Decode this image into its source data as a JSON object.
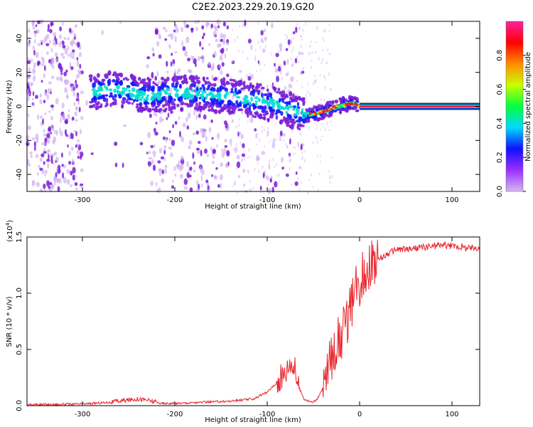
{
  "chart_data": [
    {
      "type": "heatmap",
      "title": "C2E2.2023.229.20.19.G20",
      "xlabel": "Height of straight line (km)",
      "ylabel": "Frequency (Hz)",
      "xlim": [
        -360,
        130
      ],
      "ylim": [
        -50,
        50
      ],
      "x_ticks": [
        -300,
        -200,
        -100,
        0,
        100
      ],
      "y_ticks": [
        -40,
        -20,
        0,
        20,
        40
      ],
      "colorbar": {
        "label": "Normalized spectral amplitude",
        "range": [
          0.0,
          1.0
        ],
        "ticks": [
          "0.0",
          "0.2",
          "0.4",
          "0.6",
          "0.8"
        ],
        "colormap": [
          "#d4b7ef",
          "#9b30ff",
          "#1010ff",
          "#00d8ff",
          "#00ff40",
          "#c8ff00",
          "#ff8c00",
          "#ff0000",
          "#ff20a0"
        ]
      },
      "ridge": {
        "x": [
          -290,
          -270,
          -250,
          -235,
          -220,
          -200,
          -180,
          -160,
          -140,
          -120,
          -100,
          -85,
          -70,
          -55,
          -45,
          -35,
          -25,
          -15,
          -5,
          0,
          130
        ],
        "y": [
          8,
          10,
          9,
          6,
          7,
          8,
          8,
          7,
          6,
          4,
          2,
          0,
          -3,
          -5,
          -4,
          -2,
          0,
          1,
          2,
          0,
          0
        ]
      }
    },
    {
      "type": "line",
      "xlabel": "Height of straight line (km)",
      "ylabel": "SNR (10 * v/v)",
      "multiplier_label": "(x10",
      "multiplier_exp": "4",
      "multiplier_close": ")",
      "xlim": [
        -360,
        130
      ],
      "ylim": [
        0,
        1.5
      ],
      "x_ticks": [
        -300,
        -200,
        -100,
        0,
        100
      ],
      "y_ticks": [
        "0.0",
        "0.5",
        "1.0",
        "1.5"
      ],
      "series": [
        {
          "name": "SNR",
          "color": "#e8232a",
          "x": [
            -360,
            -330,
            -300,
            -270,
            -250,
            -240,
            -230,
            -215,
            -200,
            -170,
            -140,
            -115,
            -100,
            -90,
            -80,
            -75,
            -70,
            -65,
            -60,
            -55,
            -50,
            -45,
            -40,
            -35,
            -30,
            -25,
            -20,
            -15,
            -10,
            -5,
            0,
            5,
            10,
            15,
            20,
            25,
            30,
            35,
            40,
            50,
            60,
            70,
            80,
            90,
            100,
            110,
            120,
            130
          ],
          "y": [
            0.01,
            0.01,
            0.015,
            0.03,
            0.05,
            0.06,
            0.05,
            0.02,
            0.02,
            0.03,
            0.04,
            0.06,
            0.12,
            0.2,
            0.3,
            0.4,
            0.32,
            0.15,
            0.06,
            0.04,
            0.03,
            0.07,
            0.15,
            0.32,
            0.45,
            0.55,
            0.62,
            0.72,
            0.85,
            1.0,
            1.1,
            1.18,
            1.24,
            1.28,
            1.3,
            1.32,
            1.35,
            1.37,
            1.39,
            1.39,
            1.4,
            1.41,
            1.42,
            1.43,
            1.42,
            1.41,
            1.4,
            1.41
          ]
        }
      ]
    }
  ]
}
